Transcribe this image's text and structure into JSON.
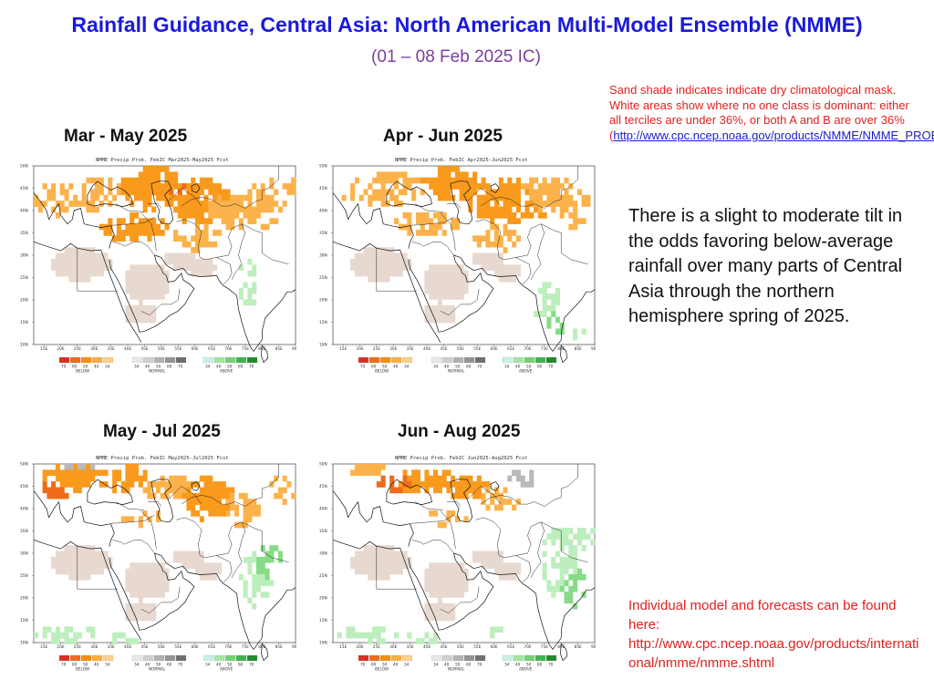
{
  "header": {
    "title": "Rainfall Guidance, Central Asia: North American Multi-Model Ensemble (NMME)",
    "subtitle": "(01 – 08 Feb 2025 IC)"
  },
  "panels": [
    {
      "title": "Mar - May 2025",
      "map_header": "NMME Precip Prob. FebIC  Mar2025-May2025 Fcst",
      "pattern": "mam"
    },
    {
      "title": "Apr - Jun 2025",
      "map_header": "NMME Precip Prob. FebIC  Apr2025-Jun2025 Fcst",
      "pattern": "amj"
    },
    {
      "title": "May - Jul 2025",
      "map_header": "NMME Precip Prob. FebIC  May2025-Jul2025 Fcst",
      "pattern": "mjj"
    },
    {
      "title": "Jun - Aug 2025",
      "map_header": "NMME Precip Prob. FebIC  Jun2025-Aug2025 Fcst",
      "pattern": "jja"
    }
  ],
  "map_axes": {
    "lat_labels": [
      "50N",
      "45N",
      "40N",
      "35N",
      "30N",
      "25N",
      "20N",
      "15N",
      "10N"
    ],
    "lon_labels": [
      "15E",
      "20E",
      "25E",
      "30E",
      "35E",
      "40E",
      "45E",
      "50E",
      "55E",
      "60E",
      "65E",
      "70E",
      "75E",
      "80E",
      "85E",
      "90E"
    ]
  },
  "legend": {
    "below": {
      "ticks": [
        "70",
        "60",
        "50",
        "40",
        "34"
      ],
      "label": "BELOW",
      "colors": [
        "#d7301f",
        "#ef6a1a",
        "#f98e09",
        "#fcae3c",
        "#fdd08a"
      ]
    },
    "normal": {
      "ticks": [
        "34",
        "40",
        "50",
        "60",
        "70"
      ],
      "label": "NORMAL",
      "colors": [
        "#e8e8e8",
        "#cfcfcf",
        "#b2b2b2",
        "#939393",
        "#6f6f6f"
      ]
    },
    "above": {
      "ticks": [
        "34",
        "40",
        "50",
        "60",
        "70"
      ],
      "label": "ABOVE",
      "colors": [
        "#c9f0e8",
        "#a4e6a4",
        "#73d273",
        "#3db54a",
        "#1e8c2b"
      ]
    }
  },
  "map_colors": {
    "dry_mask": "#e8d9d0",
    "below_light": "#fcb24a",
    "below_mid": "#f99a1c",
    "below_dark": "#ef6a1a",
    "above_light": "#bdeebd",
    "above_mid": "#86dc86",
    "normal_gray": "#b9b9b9"
  },
  "notes": {
    "mask_text": "Sand shade indicates indicate dry climatological mask. White areas show where no one class is dominant: either all terciles are under 36%, or both A and B are over 36%",
    "mask_link_open": "(",
    "mask_link": "http://www.cpc.ncep.noaa.gov/products/NMME/NMME_PROB_descr.html",
    "mask_link_close": ").",
    "main": "There is a slight to moderate tilt in the odds favoring below-average rainfall over many parts of Central Asia through the northern hemisphere spring of 2025.",
    "bottom_text": "Individual model and  forecasts can be found here:",
    "bottom_link": "http://www.cpc.ncep.noaa.gov/products/international/nmme/nmme.shtml"
  }
}
